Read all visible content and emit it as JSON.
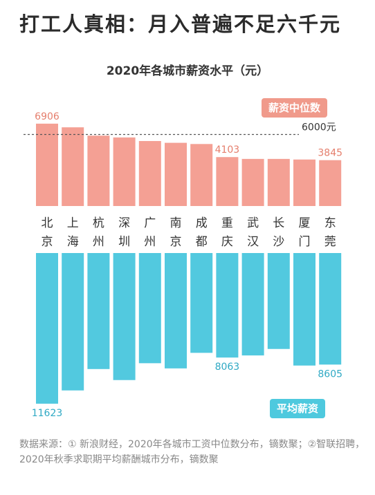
{
  "headline": "打工人真相：月入普遍不足六千元",
  "chart_data": {
    "type": "bar",
    "title": "2020年各城市薪资水平（元）",
    "categories": [
      "北京",
      "上海",
      "杭州",
      "深圳",
      "广州",
      "南京",
      "成都",
      "重庆",
      "武汉",
      "长沙",
      "厦门",
      "东莞"
    ],
    "series": [
      {
        "name": "薪资中位数",
        "color": "#f4a094",
        "values": [
          6906,
          6600,
          5900,
          5750,
          5450,
          5300,
          5200,
          4103,
          3950,
          3950,
          3900,
          3845
        ]
      },
      {
        "name": "平均薪资",
        "color": "#52c9df",
        "values": [
          11623,
          10600,
          8950,
          9800,
          8500,
          8900,
          7700,
          8063,
          7900,
          7400,
          8680,
          8605
        ]
      }
    ],
    "data_labels": [
      {
        "series": 0,
        "index": 0,
        "text": "6906"
      },
      {
        "series": 0,
        "index": 7,
        "text": "4103"
      },
      {
        "series": 0,
        "index": 11,
        "text": "3845"
      },
      {
        "series": 1,
        "index": 0,
        "text": "11623"
      },
      {
        "series": 1,
        "index": 7,
        "text": "8063"
      },
      {
        "series": 1,
        "index": 11,
        "text": "8605"
      }
    ],
    "reference_line": {
      "value": 6000,
      "label": "6000元"
    },
    "layout": "mirrored: median bars grow upward above the city labels, average bars hang downward below them"
  },
  "source_text": "数据来源：① 新浪财经，2020年各城市工资中位数分布，镝数聚；②智联招聘，2020年秋季求职期平均薪酬城市分布，镝数聚"
}
